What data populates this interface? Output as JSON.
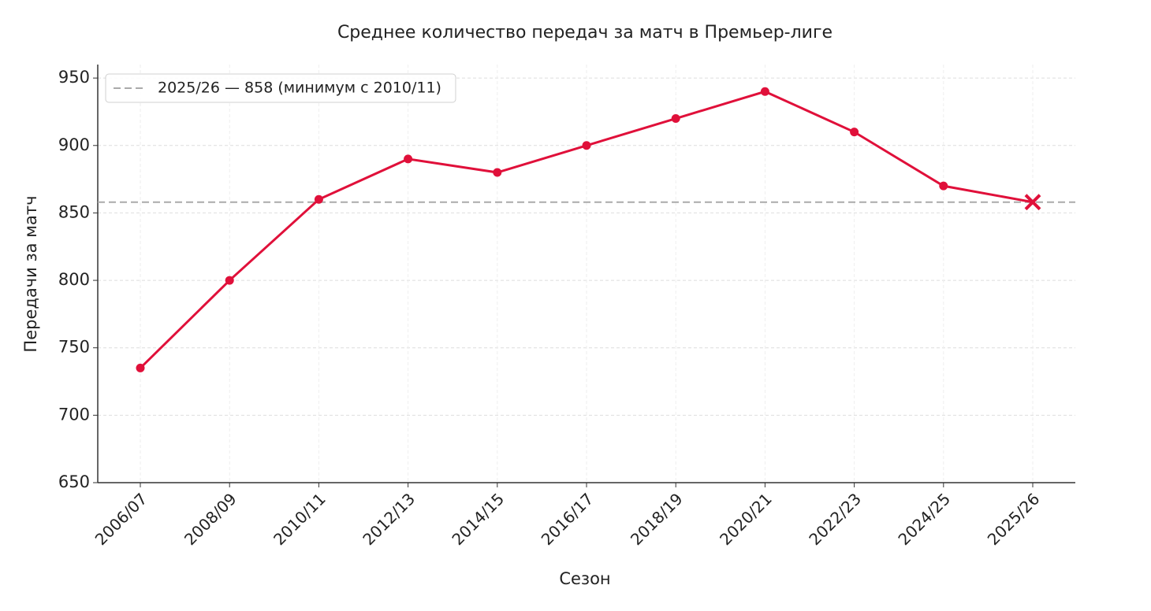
{
  "chart_data": {
    "type": "line",
    "title": "Среднее количество передач за матч в Премьер-лиге",
    "x_label": "Сезон",
    "y_label": "Передачи за матч",
    "categories": [
      "2006/07",
      "2008/09",
      "2010/11",
      "2012/13",
      "2014/15",
      "2016/17",
      "2018/19",
      "2020/21",
      "2022/23",
      "2024/25",
      "2025/26"
    ],
    "series": [
      {
        "name": "Передачи за матч",
        "color": "#e0103a",
        "values": [
          735,
          800,
          860,
          890,
          880,
          900,
          920,
          940,
          910,
          870,
          858
        ]
      }
    ],
    "reference_line": {
      "value": 858,
      "label": "2025/26 — 858 (минимум с 2010/11)",
      "color": "#aaaaaa"
    },
    "highlight_last": true,
    "ylim": [
      650,
      960
    ],
    "yticks": [
      650,
      700,
      750,
      800,
      850,
      900,
      950
    ],
    "grid": true,
    "legend_position": "upper-left"
  }
}
